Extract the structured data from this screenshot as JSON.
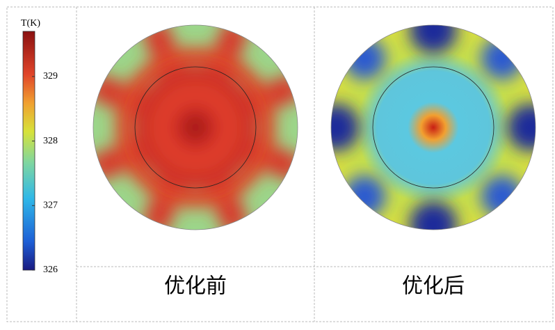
{
  "colorbar": {
    "title": "T(K)",
    "lim": [
      326,
      329.7
    ],
    "ticks": [
      326,
      327,
      328,
      329
    ]
  },
  "panels": [
    {
      "label": "优化前"
    },
    {
      "label": "优化后"
    }
  ]
}
